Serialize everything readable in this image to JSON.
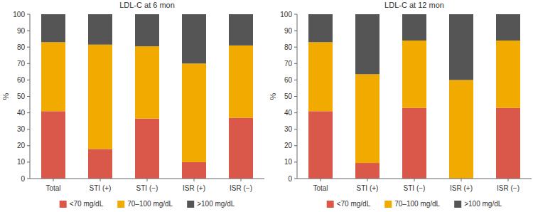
{
  "chart_data": [
    {
      "type": "bar",
      "title": "LDL-C at 6 mon",
      "ylabel": "%",
      "categories": [
        "Total",
        "STI (+)",
        "STI (−)",
        "ISR (+)",
        "ISR (−)"
      ],
      "series": [
        {
          "name": "<70 mg/dL",
          "color": "#d9584a",
          "values": [
            41,
            18,
            36.5,
            10,
            37
          ]
        },
        {
          "name": "70–100 mg/dL",
          "color": "#f0aa00",
          "values": [
            42,
            63.5,
            44,
            60,
            44
          ]
        },
        {
          "name": ">100 mg/dL",
          "color": "#555555",
          "values": [
            17,
            18.5,
            19.5,
            30,
            19
          ]
        }
      ],
      "ylim": [
        0,
        100
      ],
      "yticks": [
        0,
        10,
        20,
        30,
        40,
        50,
        60,
        70,
        80,
        90,
        100
      ],
      "stacked": true,
      "grid": false,
      "legend": "bottom"
    },
    {
      "type": "bar",
      "title": "LDL-C at 12 mon",
      "ylabel": "%",
      "categories": [
        "Total",
        "STI (+)",
        "STI (−)",
        "ISR (+)",
        "ISR (−)"
      ],
      "series": [
        {
          "name": "<70 mg/dL",
          "color": "#d9584a",
          "values": [
            41,
            9.5,
            43,
            0,
            43
          ]
        },
        {
          "name": "70–100 mg/dL",
          "color": "#f0aa00",
          "values": [
            42,
            54,
            41,
            60,
            41
          ]
        },
        {
          "name": ">100 mg/dL",
          "color": "#555555",
          "values": [
            17,
            36.5,
            16,
            40,
            16
          ]
        }
      ],
      "ylim": [
        0,
        100
      ],
      "yticks": [
        0,
        10,
        20,
        30,
        40,
        50,
        60,
        70,
        80,
        90,
        100
      ],
      "stacked": true,
      "grid": false,
      "legend": "bottom"
    }
  ]
}
